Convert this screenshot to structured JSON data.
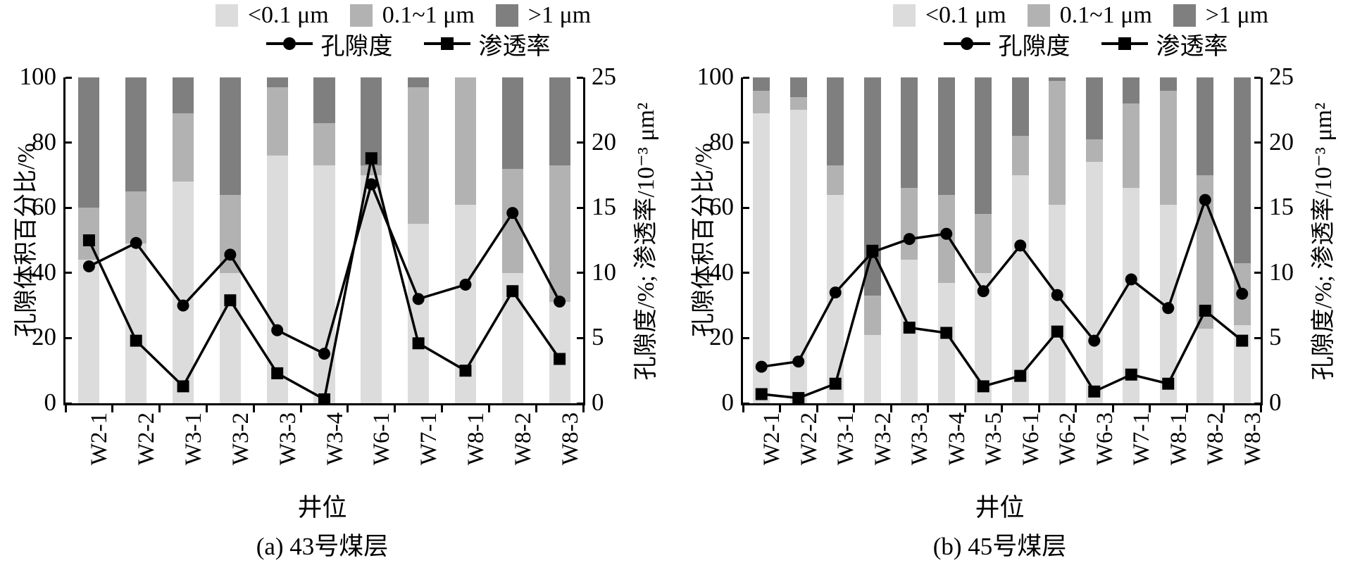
{
  "figure": {
    "legend": {
      "bar_items": [
        {
          "label": "<0.1 μm",
          "color": "#dcdcdc"
        },
        {
          "label": "0.1~1 μm",
          "color": "#b2b2b2"
        },
        {
          "label": ">1 μm",
          "color": "#7f7f7f"
        }
      ],
      "line_items": [
        {
          "label": "孔隙度",
          "marker": "circle"
        },
        {
          "label": "渗透率",
          "marker": "square"
        }
      ]
    },
    "axes": {
      "left_title": "孔隙体积百分比/%",
      "right_title": "孔隙度/%; 渗透率/10⁻³ μm²",
      "x_title": "井位",
      "left_ticks": [
        0,
        20,
        40,
        60,
        80,
        100
      ],
      "right_ticks": [
        0,
        5,
        10,
        15,
        20,
        25
      ]
    },
    "line_color": "#000000"
  },
  "chart_data": [
    {
      "type": "bar",
      "panel": "a",
      "caption": "(a) 43号煤层",
      "ylim_left": [
        0,
        100
      ],
      "ylim_right": [
        0,
        25
      ],
      "ylabel_left": "孔隙体积百分比/%",
      "ylabel_right": "孔隙度/%; 渗透率/10⁻³ μm²",
      "xlabel": "井位",
      "categories": [
        "W2-1",
        "W2-2",
        "W3-1",
        "W3-2",
        "W3-3",
        "W3-4",
        "W6-1",
        "W7-1",
        "W8-1",
        "W8-2",
        "W8-3"
      ],
      "bar_series": [
        {
          "name": "<0.1 μm",
          "values": [
            44,
            49,
            68,
            40,
            76,
            73,
            70,
            55,
            61,
            40,
            31
          ]
        },
        {
          "name": "0.1~1 μm",
          "values": [
            16,
            16,
            21,
            24,
            21,
            13,
            3,
            42,
            39,
            32,
            42
          ]
        },
        {
          "name": ">1 μm",
          "values": [
            40,
            35,
            11,
            36,
            3,
            14,
            27,
            3,
            0,
            28,
            27
          ]
        }
      ],
      "line_series": [
        {
          "name": "孔隙度",
          "marker": "circle",
          "axis": "right",
          "values": [
            10.5,
            12.3,
            7.5,
            11.4,
            5.6,
            3.8,
            16.8,
            8.0,
            9.1,
            14.6,
            7.8
          ]
        },
        {
          "name": "渗透率",
          "marker": "square",
          "axis": "right",
          "values": [
            12.5,
            4.8,
            1.3,
            7.9,
            2.3,
            0.3,
            18.8,
            4.6,
            2.5,
            8.6,
            3.4
          ]
        }
      ]
    },
    {
      "type": "bar",
      "panel": "b",
      "caption": "(b) 45号煤层",
      "ylim_left": [
        0,
        100
      ],
      "ylim_right": [
        0,
        25
      ],
      "ylabel_left": "孔隙体积百分比/%",
      "ylabel_right": "孔隙度/%; 渗透率/10⁻³ μm²",
      "xlabel": "井位",
      "categories": [
        "W2-1",
        "W2-2",
        "W3-1",
        "W3-2",
        "W3-3",
        "W3-4",
        "W3-5",
        "W6-1",
        "W6-2",
        "W6-3",
        "W7-1",
        "W8-1",
        "W8-2",
        "W8-3"
      ],
      "bar_series": [
        {
          "name": "<0.1 μm",
          "values": [
            89,
            90,
            64,
            21,
            44,
            37,
            40,
            70,
            61,
            74,
            66,
            61,
            23,
            24
          ]
        },
        {
          "name": "0.1~1 μm",
          "values": [
            7,
            4,
            9,
            12,
            22,
            27,
            18,
            12,
            38,
            7,
            26,
            35,
            47,
            19
          ]
        },
        {
          "name": ">1 μm",
          "values": [
            4,
            6,
            27,
            67,
            34,
            36,
            42,
            18,
            1,
            19,
            8,
            4,
            30,
            57
          ]
        }
      ],
      "line_series": [
        {
          "name": "孔隙度",
          "marker": "circle",
          "axis": "right",
          "values": [
            2.8,
            3.2,
            8.5,
            11.6,
            12.6,
            13.0,
            8.6,
            12.1,
            8.3,
            4.8,
            9.5,
            7.3,
            15.6,
            8.4
          ]
        },
        {
          "name": "渗透率",
          "marker": "square",
          "axis": "right",
          "values": [
            0.7,
            0.4,
            1.5,
            11.7,
            5.8,
            5.4,
            1.3,
            2.1,
            5.5,
            0.9,
            2.2,
            1.5,
            7.1,
            4.8
          ]
        }
      ]
    }
  ]
}
